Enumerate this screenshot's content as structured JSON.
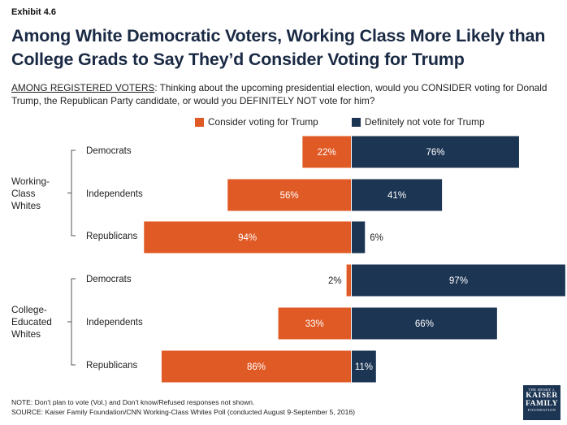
{
  "exhibit": "Exhibit 4.6",
  "title": "Among White Democratic Voters, Working Class More Likely than College Grads to Say They’d Consider Voting for Trump",
  "subtitle_lead": "AMONG REGISTERED VOTERS",
  "subtitle_rest": ": Thinking about the upcoming presidential election, would you CONSIDER voting for Donald Trump, the Republican Party candidate, or would you DEFINITELY NOT vote for him?",
  "colors": {
    "consider": "#e05a26",
    "definitely_not": "#1c3553"
  },
  "legend": {
    "consider": "Consider voting for Trump",
    "definitely_not": "Definitely not vote for Trump"
  },
  "groups": [
    {
      "label_lines": [
        "Working-",
        "Class",
        "Whites"
      ]
    },
    {
      "label_lines": [
        "College-",
        "Educated",
        "Whites"
      ]
    }
  ],
  "chart_data": {
    "type": "bar",
    "orientation": "horizontal-diverging",
    "categories": [
      "Working-Class Whites: Democrats",
      "Working-Class Whites: Independents",
      "Working-Class Whites: Republicans",
      "College-Educated Whites: Democrats",
      "College-Educated Whites: Independents",
      "College-Educated Whites: Republicans"
    ],
    "category_labels": [
      "Democrats",
      "Independents",
      "Republicans",
      "Democrats",
      "Independents",
      "Republicans"
    ],
    "series": [
      {
        "name": "Consider voting for Trump",
        "values": [
          22,
          56,
          94,
          2,
          33,
          86
        ]
      },
      {
        "name": "Definitely not vote for Trump",
        "values": [
          76,
          41,
          6,
          97,
          66,
          11
        ]
      }
    ],
    "value_suffix": "%",
    "legend_position": "top"
  },
  "note": "NOTE: Don't plan to vote (Vol.) and Don't know/Refused responses not shown.",
  "source": "SOURCE: Kaiser Family Foundation/CNN Working-Class Whites Poll (conducted August 9-September 5, 2016)",
  "logo": {
    "line1": "THE HENRY J.",
    "line2a": "KAISER",
    "line2b": "FAMILY",
    "line3": "FOUNDATION"
  }
}
